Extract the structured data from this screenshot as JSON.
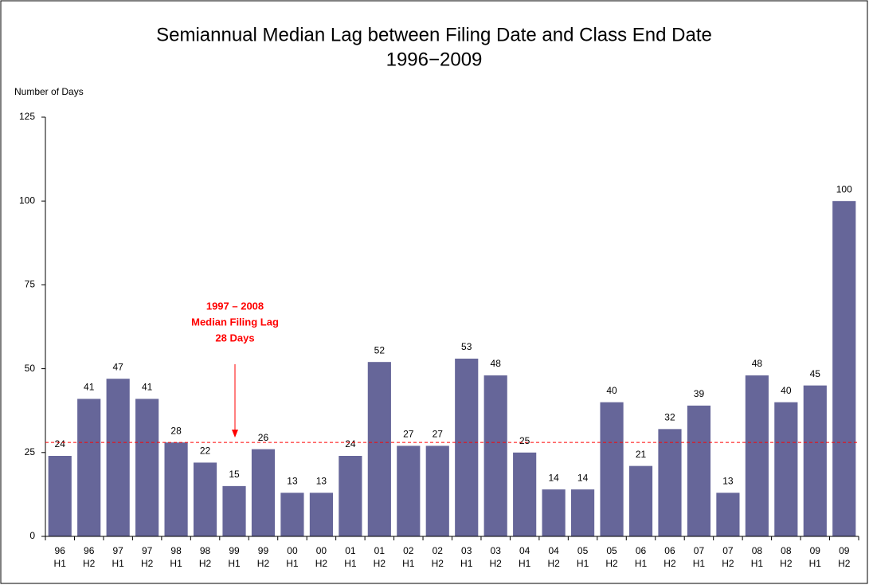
{
  "chart_data": {
    "type": "bar",
    "title": "Semiannual Median Lag between Filing Date and Class End Date",
    "subtitle": "1996−2009",
    "y_axis_label": "Number of Days",
    "categories": [
      [
        "96",
        "H1"
      ],
      [
        "96",
        "H2"
      ],
      [
        "97",
        "H1"
      ],
      [
        "97",
        "H2"
      ],
      [
        "98",
        "H1"
      ],
      [
        "98",
        "H2"
      ],
      [
        "99",
        "H1"
      ],
      [
        "99",
        "H2"
      ],
      [
        "00",
        "H1"
      ],
      [
        "00",
        "H2"
      ],
      [
        "01",
        "H1"
      ],
      [
        "01",
        "H2"
      ],
      [
        "02",
        "H1"
      ],
      [
        "02",
        "H2"
      ],
      [
        "03",
        "H1"
      ],
      [
        "03",
        "H2"
      ],
      [
        "04",
        "H1"
      ],
      [
        "04",
        "H2"
      ],
      [
        "05",
        "H1"
      ],
      [
        "05",
        "H2"
      ],
      [
        "06",
        "H1"
      ],
      [
        "06",
        "H2"
      ],
      [
        "07",
        "H1"
      ],
      [
        "07",
        "H2"
      ],
      [
        "08",
        "H1"
      ],
      [
        "08",
        "H2"
      ],
      [
        "09",
        "H1"
      ],
      [
        "09",
        "H2"
      ]
    ],
    "values": [
      24,
      41,
      47,
      41,
      28,
      22,
      15,
      26,
      13,
      13,
      24,
      52,
      27,
      27,
      53,
      48,
      25,
      14,
      14,
      40,
      21,
      32,
      39,
      13,
      48,
      40,
      45,
      100
    ],
    "color": "#666699",
    "ylim": [
      0,
      125
    ],
    "yticks": [
      0,
      25,
      50,
      75,
      100,
      125
    ],
    "reference_line": {
      "value": 28,
      "color": "#ff0000"
    },
    "annotation": [
      "1997 – 2008",
      "Median Filing Lag",
      "28 Days"
    ]
  }
}
